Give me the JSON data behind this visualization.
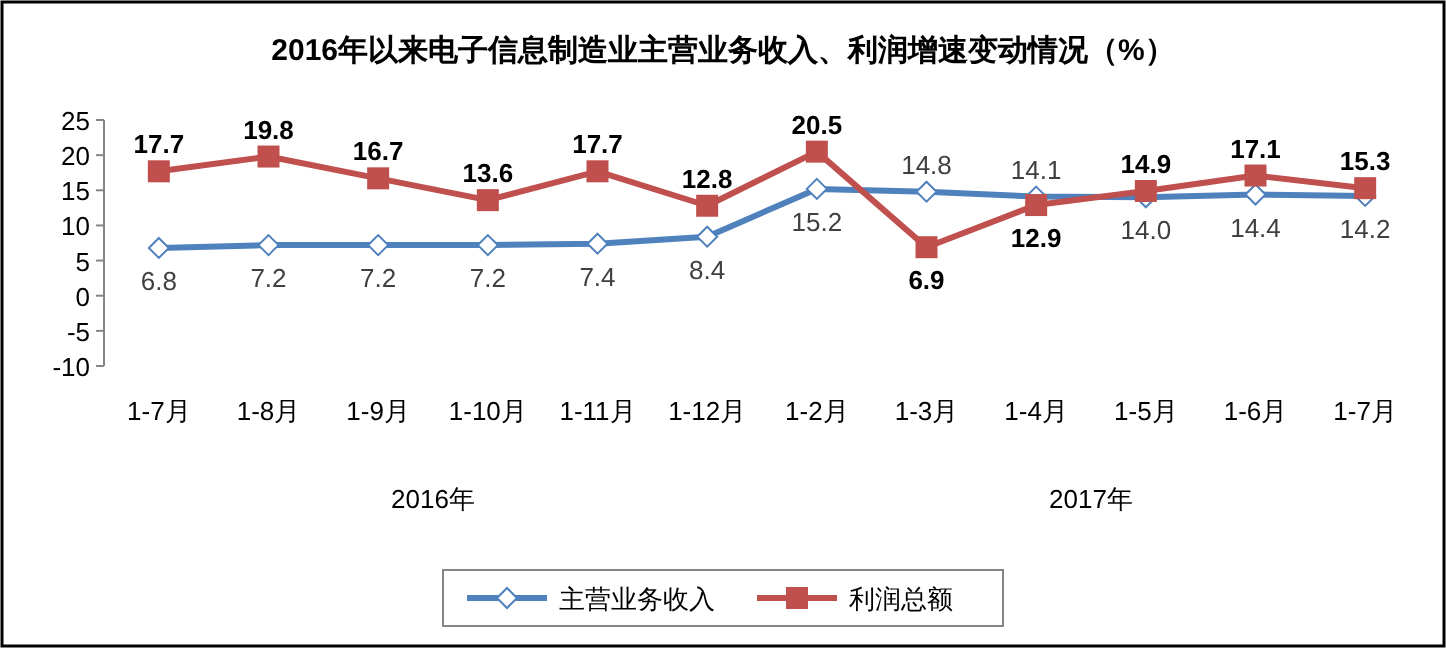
{
  "chart_data": {
    "type": "line",
    "title": "2016年以来电子信息制造业主营业务收入、利润增速变动情况（%）",
    "categories": [
      "1-7月",
      "1-8月",
      "1-9月",
      "1-10月",
      "1-11月",
      "1-12月",
      "1-2月",
      "1-3月",
      "1-4月",
      "1-5月",
      "1-6月",
      "1-7月"
    ],
    "series": [
      {
        "name": "主营业务收入",
        "color": "#4f81bd",
        "marker": "diamond",
        "values": [
          6.8,
          7.2,
          7.2,
          7.2,
          7.4,
          8.4,
          15.2,
          14.8,
          14.1,
          14.0,
          14.4,
          14.2
        ],
        "value_labels": [
          "6.8",
          "7.2",
          "7.2",
          "7.2",
          "7.4",
          "8.4",
          "15.2",
          "14.8",
          "14.1",
          "14.0",
          "14.4",
          "14.2"
        ]
      },
      {
        "name": "利润总额",
        "color": "#c0504d",
        "marker": "square",
        "values": [
          17.7,
          19.8,
          16.7,
          13.6,
          17.7,
          12.8,
          20.5,
          6.9,
          12.9,
          14.9,
          17.1,
          15.3
        ],
        "value_labels": [
          "17.7",
          "19.8",
          "16.7",
          "13.6",
          "17.7",
          "12.8",
          "20.5",
          "6.9",
          "12.9",
          "14.9",
          "17.1",
          "15.3"
        ]
      }
    ],
    "ylim": [
      -10,
      25
    ],
    "yticks": [
      -10,
      -5,
      0,
      5,
      10,
      15,
      20,
      25
    ],
    "legend": "bottom",
    "grid": false,
    "annotations": [
      "2016年",
      "2017年"
    ]
  }
}
